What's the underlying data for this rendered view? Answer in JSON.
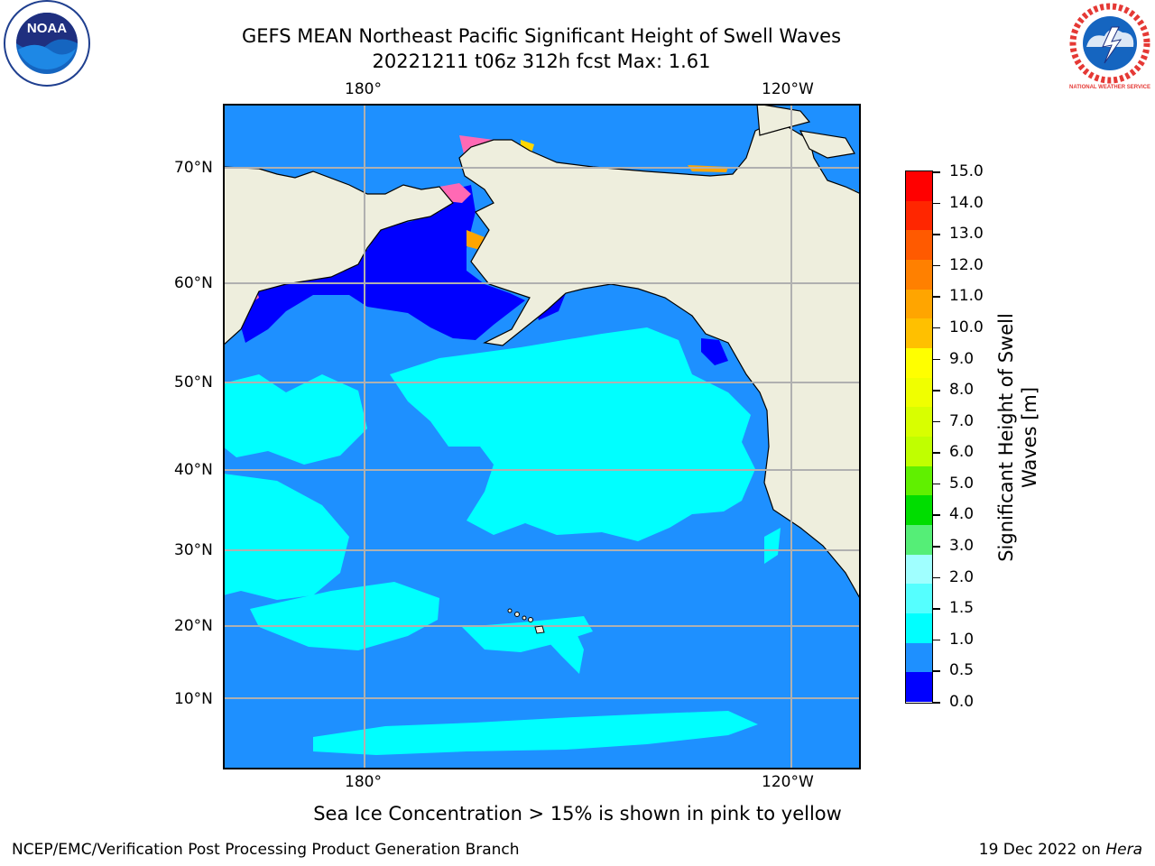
{
  "header": {
    "title_line1": "GEFS MEAN Northeast Pacific Significant Height of Swell Waves",
    "title_line2": "20221211 t06z 312h fcst   Max: 1.61"
  },
  "map": {
    "lon_labels_top": [
      "180°",
      "120°W"
    ],
    "lon_labels_bottom": [
      "180°",
      "120°W"
    ],
    "lat_labels": [
      "70°N",
      "60°N",
      "50°N",
      "40°N",
      "30°N",
      "20°N",
      "10°N"
    ],
    "colors": {
      "land": "#eeeedd",
      "ocean_0_5_1_0": "#1e90ff",
      "ocean_1_0_1_5": "#00ffff",
      "ocean_0_0_0_5": "#0000ff",
      "ice_pink": "#ff69b4",
      "ice_yellow": "#ffd700",
      "grid": "#b0b0b0"
    }
  },
  "colorbar": {
    "title_line1": "Significant Height of Swell",
    "title_line2": "Waves [m]",
    "tick_labels": [
      "15.0",
      "14.0",
      "13.0",
      "12.0",
      "11.0",
      "10.0",
      "9.0",
      "8.0",
      "7.0",
      "6.0",
      "5.0",
      "4.0",
      "3.0",
      "2.0",
      "1.5",
      "1.0",
      "0.5",
      "0.0"
    ],
    "segment_colors": [
      "#ff0000",
      "#ff2600",
      "#ff5a00",
      "#ff8000",
      "#ffa500",
      "#ffc000",
      "#ffff00",
      "#f0ff00",
      "#d8ff00",
      "#c0ff00",
      "#60f000",
      "#00dd00",
      "#55ee77",
      "#a0ffff",
      "#55ffff",
      "#00ffff",
      "#1e90ff",
      "#0000ff"
    ]
  },
  "note": "Sea Ice Concentration > 15% is shown in pink to yellow",
  "footer": {
    "left": "NCEP/EMC/Verification Post Processing Product Generation Branch",
    "right_prefix": "19 Dec 2022 on ",
    "right_host": "Hera"
  },
  "logos": {
    "noaa_text": "NOAA",
    "nws_text": "NATIONAL WEATHER SERVICE"
  }
}
